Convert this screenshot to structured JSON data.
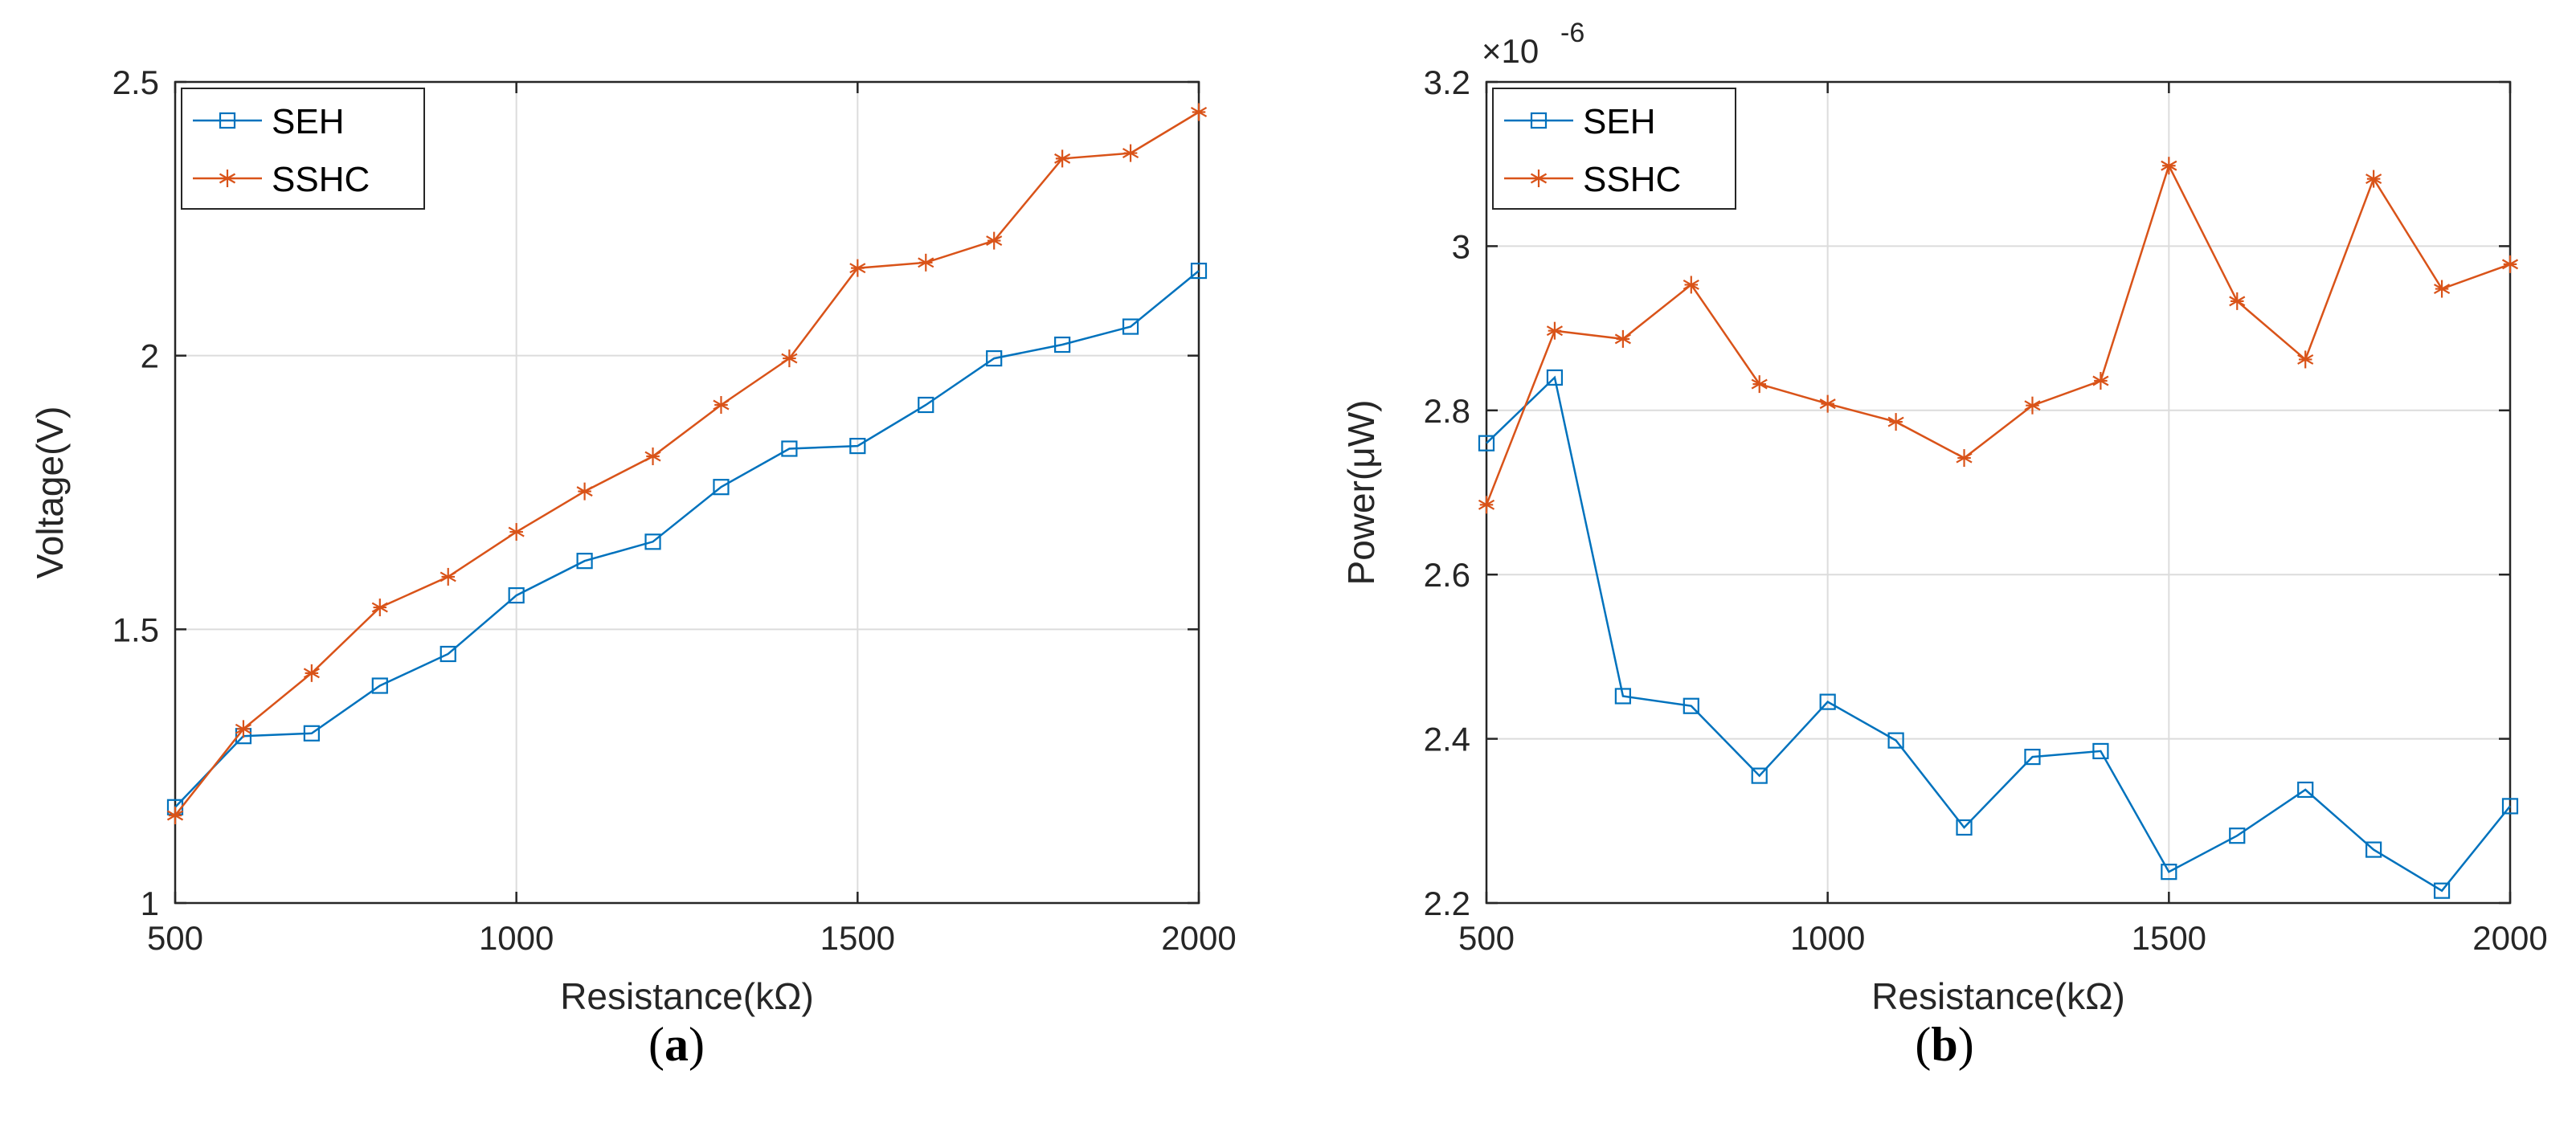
{
  "chart_data": [
    {
      "type": "line",
      "panel_label": "a",
      "xlabel": "Resistance(kΩ)",
      "ylabel": "Voltage(V)",
      "xlim": [
        500,
        2000
      ],
      "ylim": [
        1,
        2.5
      ],
      "xticks": [
        500,
        1000,
        1500,
        2000
      ],
      "yticks": [
        1,
        1.5,
        2,
        2.5
      ],
      "xtick_labels": [
        "500",
        "1000",
        "1500",
        "2000"
      ],
      "ytick_labels": [
        "1",
        "1.5",
        "2",
        "2.5"
      ],
      "grid": true,
      "legend_position": "top-left",
      "x": [
        500,
        600,
        700,
        800,
        900,
        1000,
        1100,
        1200,
        1300,
        1400,
        1500,
        1600,
        1700,
        1800,
        1900,
        2000
      ],
      "series": [
        {
          "name": "SEH",
          "color": "#0072BD",
          "marker": "square",
          "values": [
            1.175,
            1.305,
            1.31,
            1.397,
            1.455,
            1.562,
            1.625,
            1.66,
            1.76,
            1.83,
            1.835,
            1.91,
            1.995,
            2.02,
            2.053,
            2.155
          ]
        },
        {
          "name": "SSHC",
          "color": "#D95319",
          "marker": "asterisk",
          "values": [
            1.16,
            1.318,
            1.42,
            1.54,
            1.596,
            1.678,
            1.752,
            1.816,
            1.91,
            1.995,
            2.16,
            2.17,
            2.21,
            2.36,
            2.37,
            2.445
          ]
        }
      ]
    },
    {
      "type": "line",
      "panel_label": "b",
      "xlabel": "Resistance(kΩ)",
      "ylabel": "Power(μW)",
      "exponent_label": "×10",
      "exponent_power": "-6",
      "xlim": [
        500,
        2000
      ],
      "ylim": [
        2.2,
        3.2
      ],
      "xticks": [
        500,
        1000,
        1500,
        2000
      ],
      "yticks": [
        2.2,
        2.4,
        2.6,
        2.8,
        3,
        3.2
      ],
      "xtick_labels": [
        "500",
        "1000",
        "1500",
        "2000"
      ],
      "ytick_labels": [
        "2.2",
        "2.4",
        "2.6",
        "2.8",
        "3",
        "3.2"
      ],
      "grid": true,
      "legend_position": "top-left",
      "x": [
        500,
        600,
        700,
        800,
        900,
        1000,
        1100,
        1200,
        1300,
        1400,
        1500,
        1600,
        1700,
        1800,
        1900,
        2000
      ],
      "series": [
        {
          "name": "SEH",
          "color": "#0072BD",
          "marker": "square",
          "values": [
            2.76,
            2.84,
            2.452,
            2.44,
            2.355,
            2.445,
            2.398,
            2.292,
            2.378,
            2.385,
            2.238,
            2.282,
            2.338,
            2.265,
            2.215,
            2.318
          ]
        },
        {
          "name": "SSHC",
          "color": "#D95319",
          "marker": "asterisk",
          "values": [
            2.685,
            2.897,
            2.887,
            2.953,
            2.832,
            2.808,
            2.786,
            2.742,
            2.806,
            2.836,
            3.098,
            2.933,
            2.862,
            3.082,
            2.948,
            2.978
          ]
        }
      ]
    }
  ]
}
